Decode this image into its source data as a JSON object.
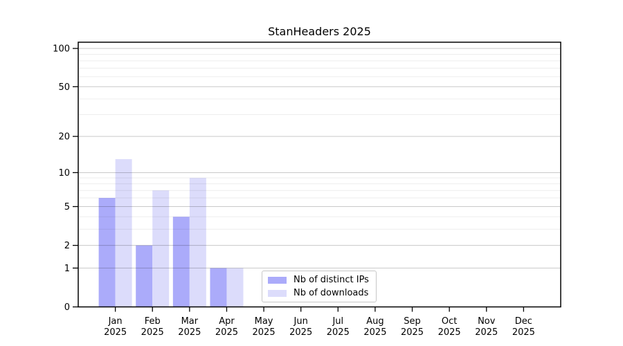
{
  "chart_data": {
    "type": "bar",
    "title": "StanHeaders 2025",
    "x_axis": {
      "categories": [
        "Jan",
        "Feb",
        "Mar",
        "Apr",
        "May",
        "Jun",
        "Jul",
        "Aug",
        "Sep",
        "Oct",
        "Nov",
        "Dec"
      ],
      "year_label": "2025"
    },
    "y_axis": {
      "scale": "log1p",
      "range": [
        0,
        100
      ],
      "tick_labels": [
        0,
        1,
        2,
        5,
        10,
        20,
        50,
        100
      ],
      "gridlines": [
        1,
        2,
        3,
        4,
        5,
        6,
        7,
        8,
        9,
        10,
        20,
        30,
        40,
        50,
        60,
        70,
        80,
        90,
        100
      ]
    },
    "series": [
      {
        "key": "distinct-ips",
        "name": "Nb of distinct IPs",
        "color": "#ababfa",
        "values": [
          6,
          2,
          4,
          1,
          0,
          0,
          0,
          0,
          0,
          0,
          0,
          0
        ]
      },
      {
        "key": "downloads",
        "name": "Nb of downloads",
        "color": "#dcdcfb",
        "values": [
          13,
          7,
          9,
          1,
          0,
          0,
          0,
          0,
          0,
          0,
          0,
          0
        ]
      }
    ],
    "legend_position": "bottom-center",
    "grid": true
  },
  "colors": {
    "background": "#ffffff",
    "axis": "#000000",
    "major_gridline": "#c9c9c9",
    "minor_gridline": "#ededed"
  }
}
